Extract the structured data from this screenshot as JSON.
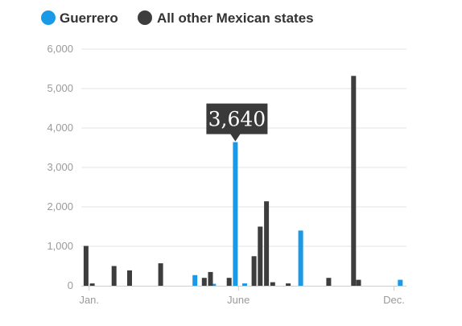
{
  "chart_data": {
    "type": "bar",
    "title": "",
    "xlabel": "",
    "ylabel": "",
    "ylim": [
      0,
      6000
    ],
    "y_ticks": [
      "0",
      "1,000",
      "2,000",
      "3,000",
      "4,000",
      "5,000",
      "6,000"
    ],
    "y_tick_values": [
      0,
      1000,
      2000,
      3000,
      4000,
      5000,
      6000
    ],
    "x_tick_labels": [
      {
        "label": "Jan.",
        "week": 1
      },
      {
        "label": "June",
        "week": 25
      },
      {
        "label": "Dec.",
        "week": 50
      }
    ],
    "x_range_weeks": [
      0,
      52
    ],
    "grid": true,
    "legend_position": "top-left",
    "colors": {
      "Guerrero": "#1a9ae6",
      "All other Mexican states": "#3d3d3d",
      "grid": "#e3e3e3",
      "axis": "#cfcfcf",
      "callout_bg": "#3a3a3a"
    },
    "series": [
      {
        "name": "Guerrero",
        "points": [
          {
            "week": 18,
            "value": 270
          },
          {
            "week": 21,
            "value": 50
          },
          {
            "week": 24.5,
            "value": 3640
          },
          {
            "week": 26,
            "value": 60
          },
          {
            "week": 35,
            "value": 1400
          },
          {
            "week": 51,
            "value": 150
          }
        ]
      },
      {
        "name": "All other Mexican states",
        "points": [
          {
            "week": 0.5,
            "value": 1010
          },
          {
            "week": 1.5,
            "value": 60
          },
          {
            "week": 5,
            "value": 500
          },
          {
            "week": 7.5,
            "value": 390
          },
          {
            "week": 12.5,
            "value": 570
          },
          {
            "week": 19.5,
            "value": 200
          },
          {
            "week": 20.5,
            "value": 350
          },
          {
            "week": 23.5,
            "value": 200
          },
          {
            "week": 27.5,
            "value": 750
          },
          {
            "week": 28.5,
            "value": 1500
          },
          {
            "week": 29.5,
            "value": 2140
          },
          {
            "week": 30.5,
            "value": 90
          },
          {
            "week": 33,
            "value": 60
          },
          {
            "week": 39.5,
            "value": 200
          },
          {
            "week": 43.5,
            "value": 5320
          },
          {
            "week": 44.3,
            "value": 150
          }
        ]
      }
    ],
    "annotation": {
      "text": "3,640",
      "series": "Guerrero",
      "week": 24.5,
      "value": 3640
    }
  }
}
